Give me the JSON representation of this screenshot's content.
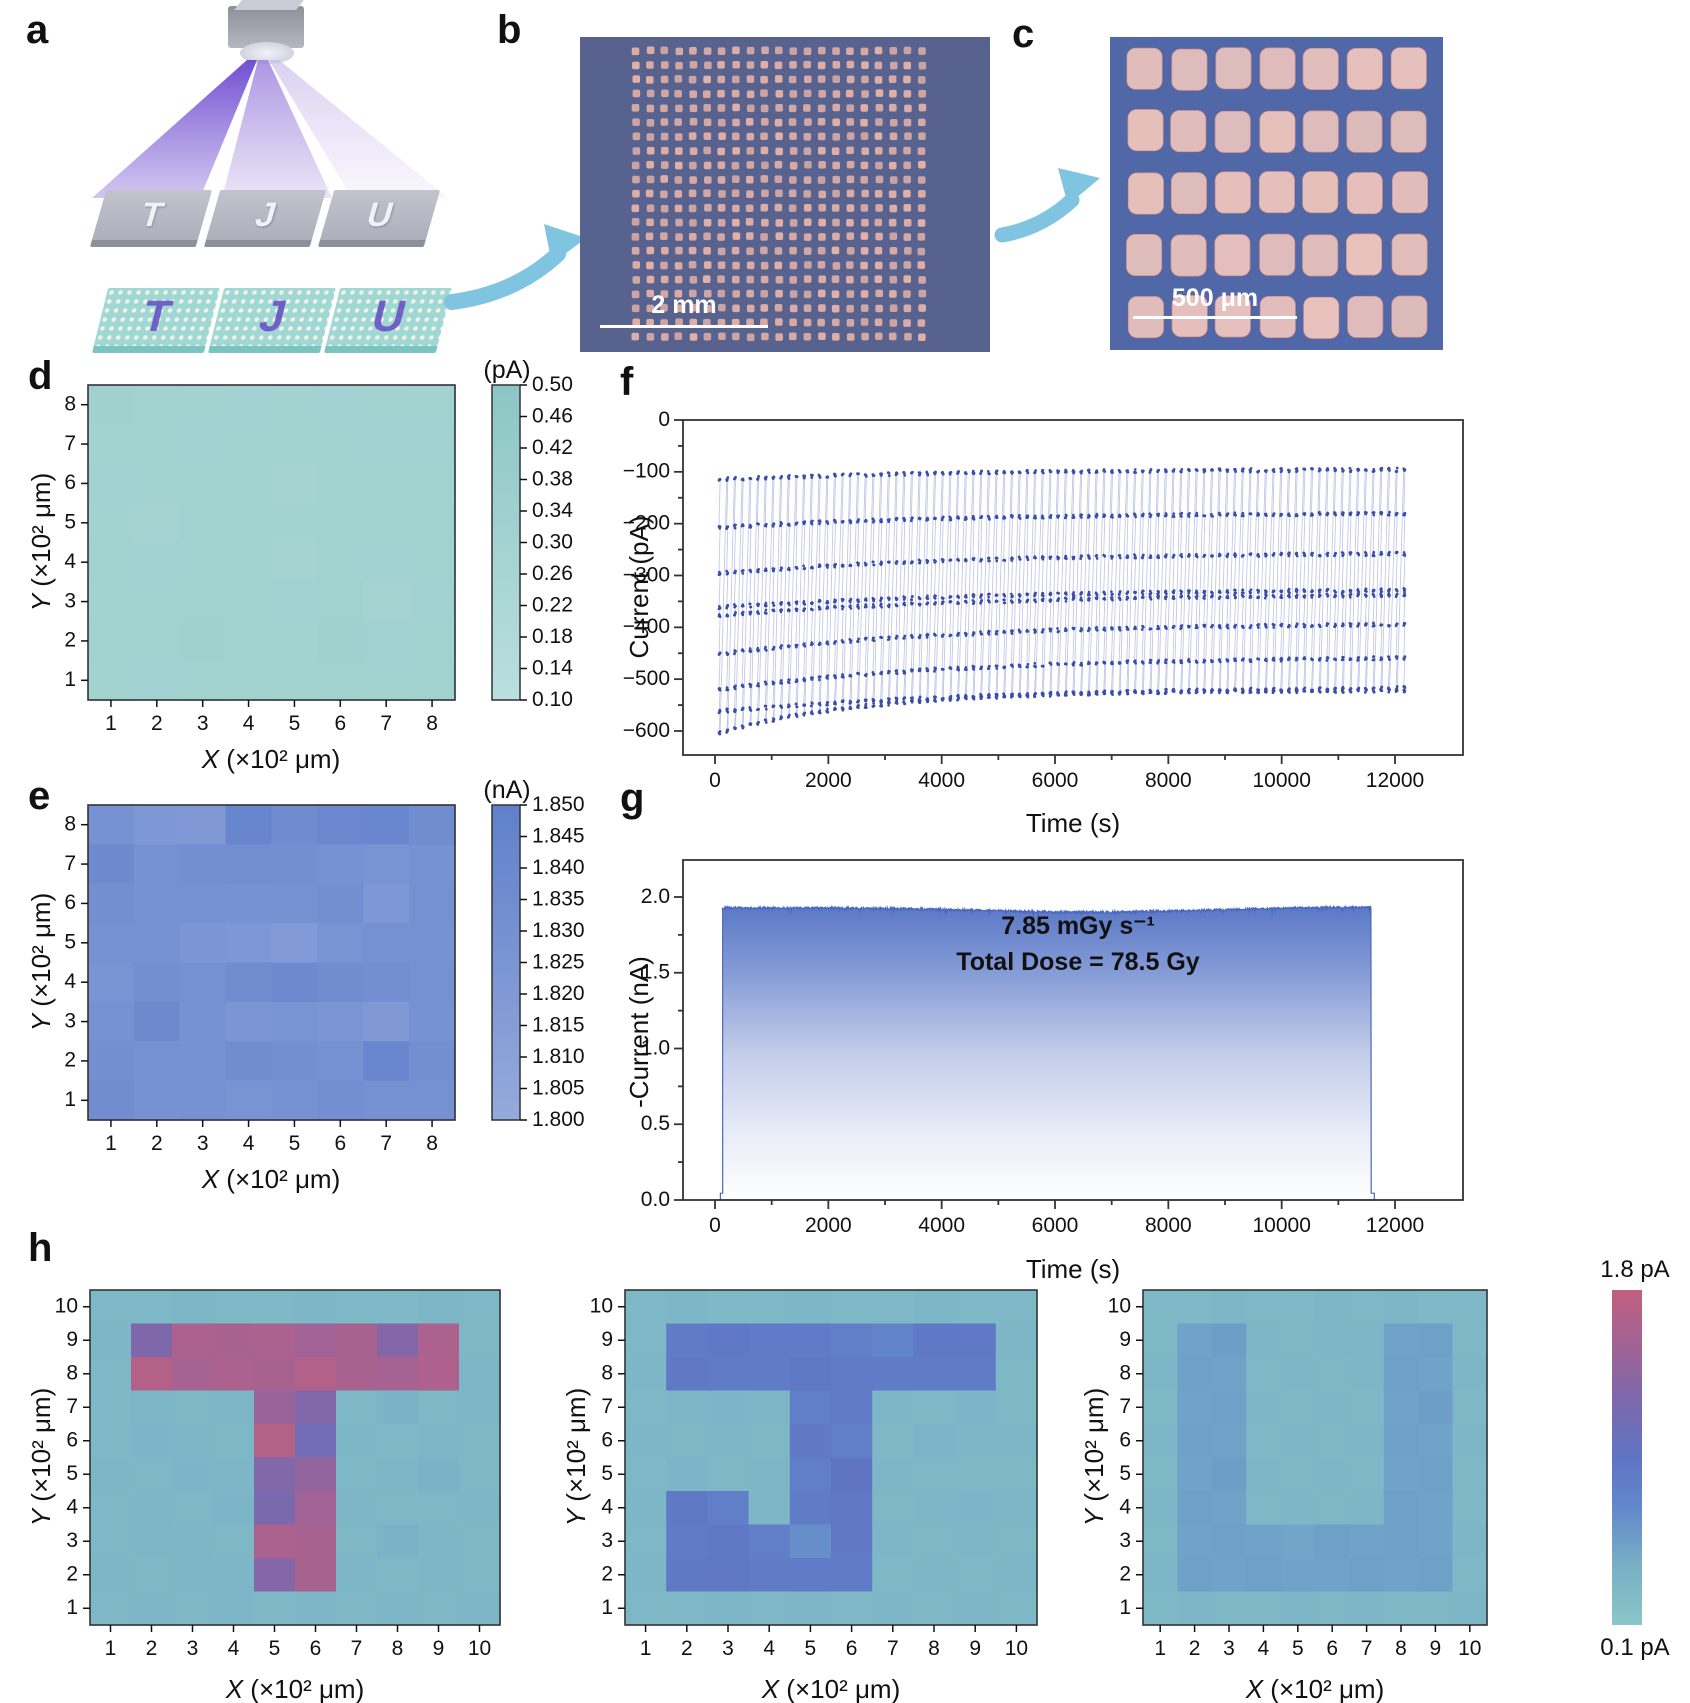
{
  "panels": {
    "a": "a",
    "b": "b",
    "c": "c",
    "d": "d",
    "e": "e",
    "f": "f",
    "g": "g",
    "h": "h"
  },
  "panel_a": {
    "letters": [
      "T",
      "J",
      "U"
    ]
  },
  "panel_b": {
    "scale_label": "2 mm"
  },
  "panel_c": {
    "scale_label": "500 μm"
  },
  "axis_labels": {
    "x_var": "X",
    "x_rest": " (×10² μm)",
    "y_var": "Y",
    "y_rest": " (×10² μm)"
  },
  "chart_data": [
    {
      "id": "d",
      "type": "heatmap",
      "unit": "(pA)",
      "xlabel": "X (×10² μm)",
      "ylabel": "Y (×10² μm)",
      "x_ticks": [
        1,
        2,
        3,
        4,
        5,
        6,
        7,
        8
      ],
      "y_ticks": [
        1,
        2,
        3,
        4,
        5,
        6,
        7,
        8
      ],
      "vmin": 0.1,
      "vmax": 0.5,
      "colorbar_ticks": [
        "0.50",
        "0.46",
        "0.42",
        "0.38",
        "0.34",
        "0.30",
        "0.26",
        "0.22",
        "0.18",
        "0.14",
        "0.10"
      ],
      "colors": {
        "min": "#badfde",
        "max": "#8cc6c4"
      },
      "values": [
        [
          0.33,
          0.31,
          0.3,
          0.32,
          0.3,
          0.32,
          0.31,
          0.3
        ],
        [
          0.3,
          0.3,
          0.32,
          0.3,
          0.31,
          0.3,
          0.32,
          0.32
        ],
        [
          0.32,
          0.31,
          0.3,
          0.31,
          0.29,
          0.3,
          0.31,
          0.3
        ],
        [
          0.3,
          0.29,
          0.31,
          0.3,
          0.3,
          0.31,
          0.3,
          0.31
        ],
        [
          0.31,
          0.32,
          0.3,
          0.31,
          0.29,
          0.3,
          0.32,
          0.3
        ],
        [
          0.3,
          0.3,
          0.31,
          0.3,
          0.32,
          0.31,
          0.29,
          0.32
        ],
        [
          0.31,
          0.3,
          0.33,
          0.31,
          0.3,
          0.33,
          0.32,
          0.3
        ],
        [
          0.3,
          0.32,
          0.3,
          0.31,
          0.3,
          0.31,
          0.3,
          0.31
        ]
      ]
    },
    {
      "id": "e",
      "type": "heatmap",
      "unit": "(nA)",
      "xlabel": "X (×10² μm)",
      "ylabel": "Y (×10² μm)",
      "x_ticks": [
        1,
        2,
        3,
        4,
        5,
        6,
        7,
        8
      ],
      "y_ticks": [
        1,
        2,
        3,
        4,
        5,
        6,
        7,
        8
      ],
      "vmin": 1.8,
      "vmax": 1.85,
      "colorbar_ticks": [
        "1.850",
        "1.845",
        "1.840",
        "1.835",
        "1.830",
        "1.825",
        "1.820",
        "1.815",
        "1.810",
        "1.805",
        "1.800"
      ],
      "colors": {
        "min": "#95aadc",
        "max": "#6080cb"
      },
      "values": [
        [
          1.828,
          1.822,
          1.82,
          1.843,
          1.836,
          1.84,
          1.842,
          1.835
        ],
        [
          1.838,
          1.83,
          1.832,
          1.833,
          1.832,
          1.828,
          1.826,
          1.828
        ],
        [
          1.832,
          1.83,
          1.83,
          1.828,
          1.83,
          1.832,
          1.822,
          1.83
        ],
        [
          1.83,
          1.828,
          1.824,
          1.822,
          1.818,
          1.826,
          1.83,
          1.828
        ],
        [
          1.826,
          1.832,
          1.83,
          1.835,
          1.838,
          1.834,
          1.832,
          1.83
        ],
        [
          1.83,
          1.838,
          1.828,
          1.824,
          1.826,
          1.824,
          1.82,
          1.828
        ],
        [
          1.832,
          1.83,
          1.828,
          1.835,
          1.832,
          1.83,
          1.842,
          1.832
        ],
        [
          1.834,
          1.828,
          1.83,
          1.826,
          1.828,
          1.832,
          1.83,
          1.83
        ]
      ]
    },
    {
      "id": "f",
      "type": "line",
      "xlabel": "Time (s)",
      "ylabel": "Current (pA)",
      "xlim": [
        0,
        13200
      ],
      "ylim": [
        -646,
        0
      ],
      "x_ticks": [
        0,
        2000,
        4000,
        6000,
        8000,
        10000,
        12000
      ],
      "y_ticks": [
        0,
        -100,
        -200,
        -300,
        -400,
        -500,
        -600
      ],
      "cycles": 90,
      "t_start": 80,
      "t_end": 12300,
      "samples_per_level": 4,
      "marker_color": "#3b4da8",
      "line_color": "#7b87c8",
      "bands": [
        {
          "start": -115,
          "end": -95,
          "tau": 4200
        },
        {
          "start": -208,
          "end": -179,
          "tau": 4200
        },
        {
          "start": -297,
          "end": -256,
          "tau": 4200
        },
        {
          "start": -362,
          "end": -325,
          "tau": 5000
        },
        {
          "start": -377,
          "end": -334,
          "tau": 5000
        },
        {
          "start": -453,
          "end": -391,
          "tau": 4200
        },
        {
          "start": -521,
          "end": -456,
          "tau": 4200
        },
        {
          "start": -563,
          "end": -513,
          "tau": 5000
        },
        {
          "start": -606,
          "end": -521,
          "tau": 2600
        }
      ]
    },
    {
      "id": "g",
      "type": "area",
      "xlabel": "Time (s)",
      "ylabel": "-Current (nA)",
      "xlim": [
        0,
        13200
      ],
      "ylim": [
        0,
        2.24
      ],
      "x_ticks": [
        0,
        2000,
        4000,
        6000,
        8000,
        10000,
        12000
      ],
      "y_ticks": [
        0.0,
        0.5,
        1.0,
        1.5,
        2.0
      ],
      "on_time": 135,
      "off_time": 11580,
      "plateau": 1.93,
      "dip": 1.9,
      "foot": 0.045,
      "annotation": {
        "line1": "7.85 mGy s⁻¹",
        "line2": "Total Dose = 78.5 Gy"
      },
      "fill_top": "#5b79c7",
      "line_color": "#4c67be"
    },
    {
      "id": "h1",
      "type": "heatmap",
      "letter": "T",
      "xlabel": "X (×10² μm)",
      "ylabel": "Y (×10² μm)",
      "x_ticks": [
        1,
        2,
        3,
        4,
        5,
        6,
        7,
        8,
        9,
        10
      ],
      "y_ticks": [
        1,
        2,
        3,
        4,
        5,
        6,
        7,
        8,
        9,
        10
      ],
      "vmin": 0.1,
      "vmax": 1.8,
      "colorbar": {
        "label_top": "1.8 pA",
        "label_bottom": "0.1 pA",
        "stops": [
          [
            0.1,
            "#8ac7c9"
          ],
          [
            0.4,
            "#78b0c6"
          ],
          [
            0.7,
            "#6287cb"
          ],
          [
            0.95,
            "#5f74c4"
          ],
          [
            1.25,
            "#7e68ab"
          ],
          [
            1.55,
            "#a56292"
          ],
          [
            1.8,
            "#c2607f"
          ]
        ]
      },
      "values": [
        [
          0.3,
          0.28,
          0.32,
          0.3,
          0.29,
          0.31,
          0.3,
          0.28,
          0.31,
          0.3
        ],
        [
          0.31,
          1.25,
          1.62,
          1.58,
          1.6,
          1.52,
          1.58,
          1.3,
          1.6,
          0.3
        ],
        [
          0.3,
          1.68,
          1.55,
          1.6,
          1.57,
          1.66,
          1.58,
          1.55,
          1.63,
          0.31
        ],
        [
          0.29,
          0.31,
          0.3,
          0.32,
          1.45,
          1.28,
          0.3,
          0.36,
          0.3,
          0.31
        ],
        [
          0.3,
          0.34,
          0.31,
          0.3,
          1.68,
          1.12,
          0.31,
          0.3,
          0.32,
          0.3
        ],
        [
          0.31,
          0.3,
          0.33,
          0.31,
          1.28,
          1.4,
          0.3,
          0.31,
          0.36,
          0.3
        ],
        [
          0.3,
          0.31,
          0.3,
          0.34,
          1.22,
          1.52,
          0.32,
          0.3,
          0.3,
          0.31
        ],
        [
          0.3,
          0.32,
          0.31,
          0.3,
          1.6,
          1.58,
          0.3,
          0.36,
          0.31,
          0.3
        ],
        [
          0.31,
          0.3,
          0.32,
          0.31,
          1.3,
          1.58,
          0.31,
          0.3,
          0.32,
          0.3
        ],
        [
          0.3,
          0.31,
          0.3,
          0.32,
          0.3,
          0.31,
          0.3,
          0.31,
          0.3,
          0.31
        ]
      ]
    },
    {
      "id": "h2",
      "type": "heatmap",
      "letter": "J",
      "xlabel": "X (×10² μm)",
      "ylabel": "Y (×10² μm)",
      "x_ticks": [
        1,
        2,
        3,
        4,
        5,
        6,
        7,
        8,
        9,
        10
      ],
      "y_ticks": [
        1,
        2,
        3,
        4,
        5,
        6,
        7,
        8,
        9,
        10
      ],
      "vmin": 0.1,
      "vmax": 1.8,
      "values": [
        [
          0.3,
          0.31,
          0.28,
          0.3,
          0.31,
          0.3,
          0.29,
          0.31,
          0.3,
          0.3
        ],
        [
          0.3,
          0.84,
          0.9,
          0.86,
          0.86,
          0.82,
          0.74,
          0.88,
          0.9,
          0.31
        ],
        [
          0.31,
          0.9,
          0.84,
          0.86,
          0.88,
          0.84,
          0.86,
          0.84,
          0.86,
          0.3
        ],
        [
          0.3,
          0.32,
          0.34,
          0.31,
          0.8,
          0.86,
          0.32,
          0.3,
          0.34,
          0.3
        ],
        [
          0.31,
          0.3,
          0.31,
          0.3,
          0.9,
          0.82,
          0.3,
          0.34,
          0.31,
          0.32
        ],
        [
          0.3,
          0.34,
          0.3,
          0.31,
          0.82,
          0.94,
          0.31,
          0.3,
          0.3,
          0.3
        ],
        [
          0.31,
          0.88,
          0.8,
          0.32,
          0.84,
          0.9,
          0.3,
          0.31,
          0.34,
          0.31
        ],
        [
          0.3,
          0.86,
          0.88,
          0.82,
          0.64,
          0.9,
          0.32,
          0.3,
          0.31,
          0.3
        ],
        [
          0.31,
          0.88,
          0.9,
          0.84,
          0.86,
          0.86,
          0.3,
          0.32,
          0.3,
          0.31
        ],
        [
          0.3,
          0.3,
          0.31,
          0.3,
          0.32,
          0.3,
          0.31,
          0.3,
          0.31,
          0.3
        ]
      ]
    },
    {
      "id": "h3",
      "type": "heatmap",
      "letter": "U",
      "xlabel": "X (×10² μm)",
      "ylabel": "Y (×10² μm)",
      "x_ticks": [
        1,
        2,
        3,
        4,
        5,
        6,
        7,
        8,
        9,
        10
      ],
      "y_ticks": [
        1,
        2,
        3,
        4,
        5,
        6,
        7,
        8,
        9,
        10
      ],
      "vmin": 0.1,
      "vmax": 1.8,
      "values": [
        [
          0.3,
          0.29,
          0.31,
          0.3,
          0.28,
          0.31,
          0.3,
          0.31,
          0.29,
          0.3
        ],
        [
          0.3,
          0.5,
          0.53,
          0.31,
          0.3,
          0.32,
          0.31,
          0.5,
          0.52,
          0.3
        ],
        [
          0.31,
          0.52,
          0.5,
          0.3,
          0.32,
          0.3,
          0.31,
          0.52,
          0.5,
          0.31
        ],
        [
          0.3,
          0.5,
          0.52,
          0.32,
          0.3,
          0.31,
          0.3,
          0.5,
          0.53,
          0.3
        ],
        [
          0.31,
          0.52,
          0.5,
          0.3,
          0.31,
          0.3,
          0.32,
          0.52,
          0.5,
          0.31
        ],
        [
          0.3,
          0.5,
          0.53,
          0.31,
          0.3,
          0.32,
          0.3,
          0.5,
          0.52,
          0.3
        ],
        [
          0.31,
          0.52,
          0.5,
          0.3,
          0.32,
          0.3,
          0.31,
          0.52,
          0.5,
          0.3
        ],
        [
          0.3,
          0.5,
          0.52,
          0.5,
          0.48,
          0.52,
          0.5,
          0.52,
          0.5,
          0.31
        ],
        [
          0.31,
          0.52,
          0.5,
          0.52,
          0.5,
          0.5,
          0.52,
          0.5,
          0.52,
          0.3
        ],
        [
          0.3,
          0.31,
          0.3,
          0.29,
          0.31,
          0.3,
          0.31,
          0.3,
          0.3,
          0.31
        ]
      ]
    }
  ]
}
